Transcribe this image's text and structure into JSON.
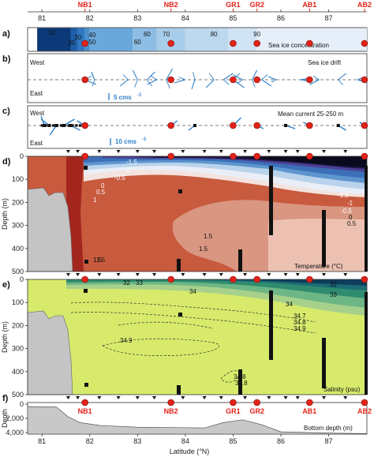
{
  "chart_data": {
    "type": "multi-panel section",
    "x_axis": {
      "label": "Latitude (°N)",
      "range": [
        80.7,
        87.8
      ],
      "ticks": [
        81,
        82,
        83,
        84,
        85,
        86,
        87
      ]
    },
    "stations": [
      {
        "name": "NB1",
        "lat": 81.9
      },
      {
        "name": "NB2",
        "lat": 83.7
      },
      {
        "name": "GR1",
        "lat": 85.0
      },
      {
        "name": "GR2",
        "lat": 85.5
      },
      {
        "name": "AB1",
        "lat": 86.6
      },
      {
        "name": "AB2",
        "lat": 87.75
      }
    ],
    "panels": {
      "a": {
        "letter": "a)",
        "title": "Sea ice concentration",
        "band_start": [
          80.9,
          81.6,
          81.75,
          81.9,
          82.0,
          82.9,
          83.4,
          84.0,
          84.9,
          85.5
        ],
        "band_colors": [
          "#0c3a78",
          "#1f5ea8",
          "#2f78c0",
          "#4a8fcc",
          "#6aa7da",
          "#8dbde4",
          "#a8cdea",
          "#bcd8ef",
          "#d0e3f4",
          "#e6eff9"
        ],
        "labels": [
          {
            "text": "10",
            "lat": 81.2
          },
          {
            "text": "20",
            "lat": 81.75
          },
          {
            "text": "30",
            "lat": 81.62
          },
          {
            "text": "40",
            "lat": 82.05
          },
          {
            "text": "50",
            "lat": 82.05
          },
          {
            "text": "60",
            "lat": 83.2
          },
          {
            "text": "60",
            "lat": 83.0
          },
          {
            "text": "70",
            "lat": 83.6
          },
          {
            "text": "80",
            "lat": 84.6
          },
          {
            "text": "90",
            "lat": 85.5
          }
        ]
      },
      "b": {
        "letter": "b)",
        "title": "Sea ice drift",
        "west": "West",
        "east": "East",
        "scale": "5 cms",
        "scale_sup": "-1",
        "vector_lats": [
          81.9,
          82.1,
          82.8,
          83.0,
          83.2,
          83.4,
          83.6,
          84.0,
          84.2,
          84.6,
          84.8,
          85.0,
          85.2,
          85.4,
          85.6,
          85.9,
          86.4,
          86.8,
          87.2,
          87.6
        ]
      },
      "c": {
        "letter": "c)",
        "title": "Mean current 25-250 m",
        "west": "West",
        "east": "East",
        "scale": "10 cms",
        "scale_sup": "-1",
        "vector_lats": [
          81.05,
          81.15,
          81.3,
          81.45,
          81.6,
          81.9,
          83.7,
          84.2,
          85.0,
          85.5,
          86.1,
          86.6,
          87.2,
          87.75
        ]
      },
      "d": {
        "letter": "d)",
        "title": "Temperature (°C)",
        "ylabel": "Depth (m)",
        "yticks": [
          0,
          100,
          200,
          300,
          400,
          500
        ],
        "ylim": [
          0,
          500
        ],
        "contour_labels": [
          "-1.5",
          "-1",
          "-0.5",
          "0",
          "0.5",
          "1",
          "1.5",
          "1.5",
          "1.5",
          "-1.5",
          "-1",
          "-0.5",
          "0",
          "0.5",
          "1.5"
        ]
      },
      "e": {
        "letter": "e)",
        "title": "Salinity (psu)",
        "ylabel": "Depth (m)",
        "yticks": [
          0,
          100,
          200,
          300,
          400,
          500
        ],
        "ylim": [
          0,
          500
        ],
        "contour_labels": [
          "32",
          "33",
          "34",
          "34.9",
          "34.8",
          "32",
          "33",
          "34",
          "34.7",
          "34.8",
          "34.9",
          "34.8"
        ]
      },
      "f": {
        "letter": "f)",
        "title": "Bottom depth (m)",
        "ylabel": "Depth",
        "yticks": [
          0,
          2000,
          4000
        ],
        "bottom_depth": [
          [
            80.7,
            350
          ],
          [
            81.3,
            400
          ],
          [
            81.55,
            1800
          ],
          [
            81.8,
            2600
          ],
          [
            82.2,
            3000
          ],
          [
            83.0,
            3250
          ],
          [
            83.8,
            3300
          ],
          [
            84.4,
            3350
          ],
          [
            84.8,
            2600
          ],
          [
            85.2,
            2200
          ],
          [
            85.6,
            2900
          ],
          [
            86.0,
            3900
          ],
          [
            86.6,
            4000
          ],
          [
            87.2,
            4100
          ],
          [
            87.8,
            4150
          ]
        ]
      }
    },
    "colors": {
      "station": "#e2231a",
      "vector": "#2f7fc9",
      "ice_dark": "#0c3a78",
      "warm": "#c85a3e",
      "fresh": "#0f3d5c"
    }
  }
}
